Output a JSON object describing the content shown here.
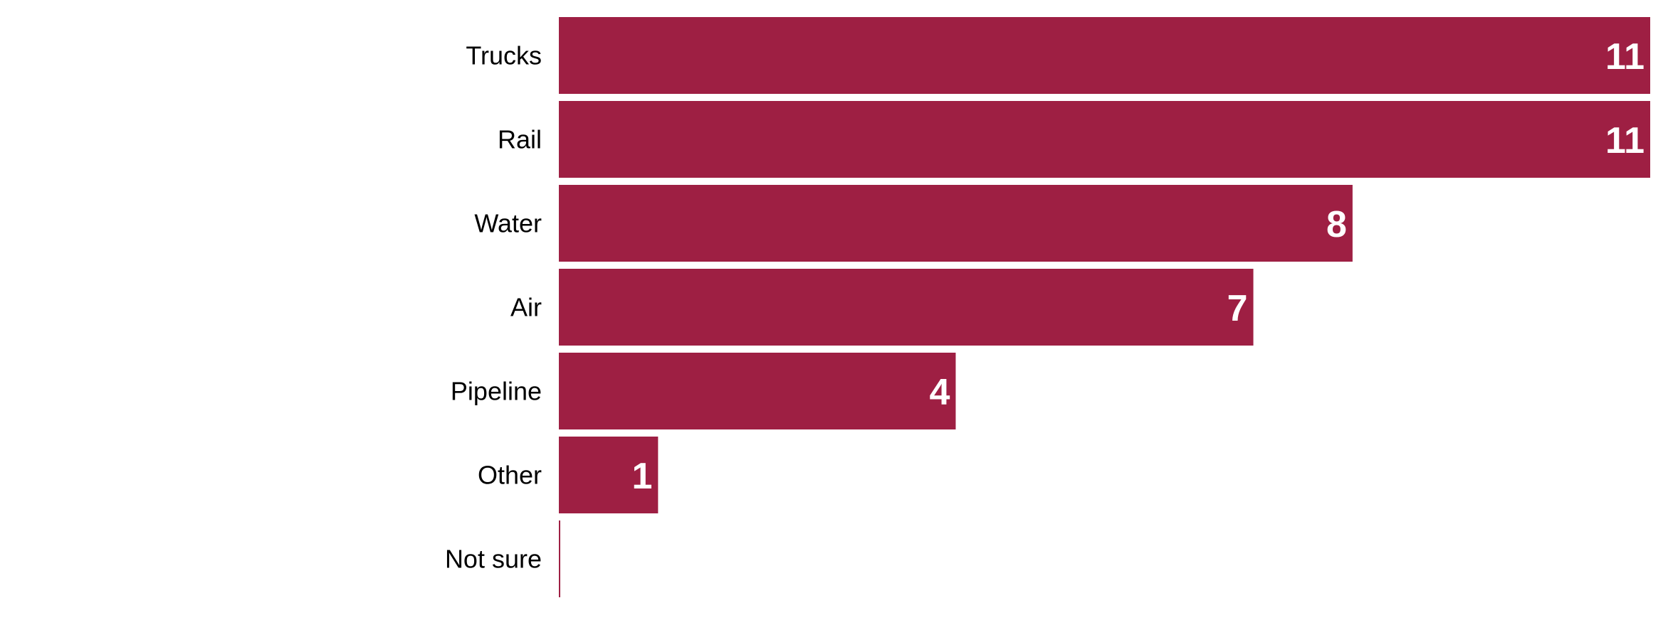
{
  "chart_data": {
    "type": "bar",
    "orientation": "horizontal",
    "categories": [
      "Trucks",
      "Rail",
      "Water",
      "Air",
      "Pipeline",
      "Other",
      "Not sure"
    ],
    "values": [
      11,
      11,
      8,
      7,
      4,
      1,
      0
    ],
    "title": "",
    "xlabel": "",
    "ylabel": "",
    "xlim": [
      0,
      11
    ],
    "grid": false,
    "legend": "none",
    "data_labels": true,
    "bar_color": "#9e1f43",
    "label_color": "#ffffff"
  }
}
